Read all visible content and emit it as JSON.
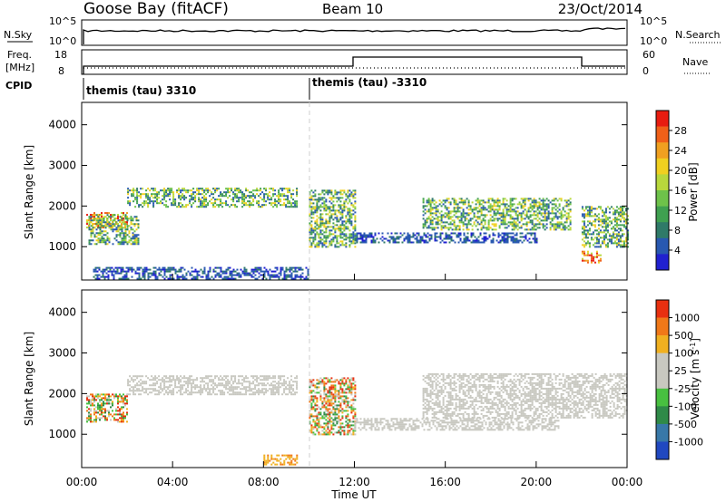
{
  "header": {
    "station": "Goose Bay (fitACF)",
    "beam": "Beam 10",
    "date": "23/Oct/2014"
  },
  "noise_panel": {
    "left_label": "N.Sky",
    "left_ticks": [
      "10^5",
      "10^0"
    ],
    "right_label": "N.Search",
    "right_ticks": [
      "10^5",
      "10^0"
    ]
  },
  "freq_panel": {
    "left_label_1": "Freq.",
    "left_label_2": "[MHz]",
    "left_ticks": [
      "18",
      "8"
    ],
    "right_label": "Nave",
    "right_ticks": [
      "60",
      "0"
    ],
    "cpid_label": "CPID",
    "programs": [
      {
        "name": "themis (tau) 3310",
        "start_hour": 0
      },
      {
        "name": "themis (tau) -3310",
        "start_hour": 10
      }
    ]
  },
  "chart_data": [
    {
      "type": "heatmap",
      "name": "power",
      "ylabel": "Slant Range [km]",
      "ylim": [
        180,
        4550
      ],
      "yticks": [
        "1000",
        "2000",
        "3000",
        "4000"
      ],
      "xlim_hours": [
        0,
        24
      ],
      "colorbar_label": "Power [dB]",
      "colorbar_ticks": [
        "28",
        "24",
        "20",
        "16",
        "12",
        "8",
        "4"
      ],
      "colorbar_colors": [
        "#2020d0",
        "#2858b0",
        "#2f7a68",
        "#3fa050",
        "#6ec24a",
        "#b8d83c",
        "#f0d020",
        "#f0a020",
        "#f06018",
        "#e81c10"
      ],
      "bands": [
        {
          "x0": 0.2,
          "x1": 2,
          "y0": 1450,
          "y1": 1850,
          "class": "hi"
        },
        {
          "x0": 2,
          "x1": 9.5,
          "y0": 2000,
          "y1": 2450,
          "class": "mid"
        },
        {
          "x0": 0.3,
          "x1": 2.5,
          "y0": 1050,
          "y1": 1800,
          "class": "mid"
        },
        {
          "x0": 10,
          "x1": 12,
          "y0": 1000,
          "y1": 2400,
          "class": "mid"
        },
        {
          "x0": 12,
          "x1": 20,
          "y0": 1100,
          "y1": 1350,
          "class": "low"
        },
        {
          "x0": 15,
          "x1": 21.5,
          "y0": 1400,
          "y1": 2200,
          "class": "mid"
        },
        {
          "x0": 22,
          "x1": 24,
          "y0": 1000,
          "y1": 2000,
          "class": "mid"
        },
        {
          "x0": 0.5,
          "x1": 10,
          "y0": 200,
          "y1": 500,
          "class": "low"
        },
        {
          "x0": 22,
          "x1": 22.8,
          "y0": 600,
          "y1": 900,
          "class": "hi"
        }
      ]
    },
    {
      "type": "heatmap",
      "name": "velocity",
      "ylabel": "Slant Range [km]",
      "ylim": [
        180,
        4550
      ],
      "yticks": [
        "1000",
        "2000",
        "3000",
        "4000"
      ],
      "xlim_hours": [
        0,
        24
      ],
      "xticks": [
        "00:00",
        "04:00",
        "08:00",
        "12:00",
        "16:00",
        "20:00",
        "00:00"
      ],
      "xlabel": "Time UT",
      "colorbar_label": "Velocity [m s",
      "colorbar_label_sup": "-1",
      "colorbar_label_end": "]",
      "colorbar_ticks": [
        "1000",
        "500",
        "100",
        "25",
        "-25",
        "-100",
        "-500",
        "-1000"
      ],
      "colorbar_colors": [
        "#2048c0",
        "#3878a8",
        "#2f8a48",
        "#48c040",
        "#c8c8c0",
        "#c8c8c0",
        "#f0b020",
        "#f07818",
        "#e83010"
      ],
      "bands": [
        {
          "x0": 2,
          "x1": 9.5,
          "y0": 2000,
          "y1": 2450,
          "class": "grey"
        },
        {
          "x0": 0.2,
          "x1": 2,
          "y0": 1300,
          "y1": 2000,
          "class": "mix"
        },
        {
          "x0": 10,
          "x1": 12,
          "y0": 1000,
          "y1": 2400,
          "class": "mix"
        },
        {
          "x0": 12,
          "x1": 21,
          "y0": 1100,
          "y1": 1400,
          "class": "grey"
        },
        {
          "x0": 15,
          "x1": 24,
          "y0": 1400,
          "y1": 2500,
          "class": "grey"
        },
        {
          "x0": 8,
          "x1": 9.5,
          "y0": 250,
          "y1": 500,
          "class": "orange"
        }
      ]
    }
  ]
}
